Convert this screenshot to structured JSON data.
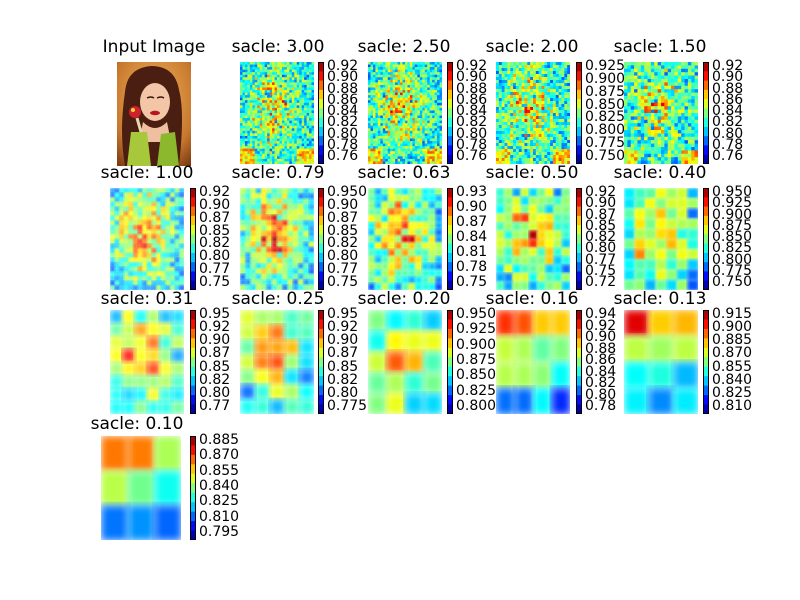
{
  "chart_data": {
    "type": "heatmap",
    "input_panel": {
      "title": "Input Image"
    },
    "colormap": "jet",
    "panels": [
      {
        "title": "sacle: 3.00",
        "ticks": [
          "0.92",
          "0.90",
          "0.88",
          "0.86",
          "0.84",
          "0.82",
          "0.80",
          "0.78",
          "0.76"
        ]
      },
      {
        "title": "sacle: 2.50",
        "ticks": [
          "0.92",
          "0.90",
          "0.88",
          "0.86",
          "0.84",
          "0.82",
          "0.80",
          "0.78",
          "0.76"
        ]
      },
      {
        "title": "sacle: 2.00",
        "ticks": [
          "0.925",
          "0.900",
          "0.875",
          "0.850",
          "0.825",
          "0.800",
          "0.775",
          "0.750"
        ]
      },
      {
        "title": "sacle: 1.50",
        "ticks": [
          "0.92",
          "0.90",
          "0.88",
          "0.86",
          "0.84",
          "0.82",
          "0.80",
          "0.78",
          "0.76"
        ]
      },
      {
        "title": "sacle: 1.00",
        "ticks": [
          "0.92",
          "0.90",
          "0.87",
          "0.85",
          "0.82",
          "0.80",
          "0.77",
          "0.75"
        ]
      },
      {
        "title": "sacle: 0.79",
        "ticks": [
          "0.950",
          "0.90",
          "0.87",
          "0.85",
          "0.82",
          "0.80",
          "0.77",
          "0.75"
        ]
      },
      {
        "title": "sacle: 0.63",
        "ticks": [
          "0.93",
          "0.90",
          "0.87",
          "0.84",
          "0.81",
          "0.78",
          "0.75"
        ]
      },
      {
        "title": "sacle: 0.50",
        "ticks": [
          "0.92",
          "0.90",
          "0.87",
          "0.85",
          "0.82",
          "0.80",
          "0.77",
          "0.75",
          "0.72"
        ]
      },
      {
        "title": "sacle: 0.40",
        "ticks": [
          "0.950",
          "0.925",
          "0.900",
          "0.875",
          "0.850",
          "0.825",
          "0.800",
          "0.775",
          "0.750"
        ]
      },
      {
        "title": "sacle: 0.31",
        "ticks": [
          "0.95",
          "0.92",
          "0.90",
          "0.87",
          "0.85",
          "0.82",
          "0.80",
          "0.77"
        ]
      },
      {
        "title": "sacle: 0.25",
        "ticks": [
          "0.95",
          "0.92",
          "0.90",
          "0.87",
          "0.85",
          "0.82",
          "0.80",
          "0.775"
        ]
      },
      {
        "title": "sacle: 0.20",
        "ticks": [
          "0.950",
          "0.925",
          "0.900",
          "0.875",
          "0.850",
          "0.825",
          "0.800"
        ]
      },
      {
        "title": "sacle: 0.16",
        "ticks": [
          "0.94",
          "0.92",
          "0.90",
          "0.88",
          "0.86",
          "0.84",
          "0.82",
          "0.80",
          "0.78"
        ]
      },
      {
        "title": "sacle: 0.13",
        "ticks": [
          "0.915",
          "0.900",
          "0.885",
          "0.870",
          "0.855",
          "0.840",
          "0.825",
          "0.810"
        ]
      },
      {
        "title": "sacle: 0.10",
        "ticks": [
          "0.885",
          "0.870",
          "0.855",
          "0.840",
          "0.825",
          "0.810",
          "0.795"
        ]
      }
    ]
  }
}
